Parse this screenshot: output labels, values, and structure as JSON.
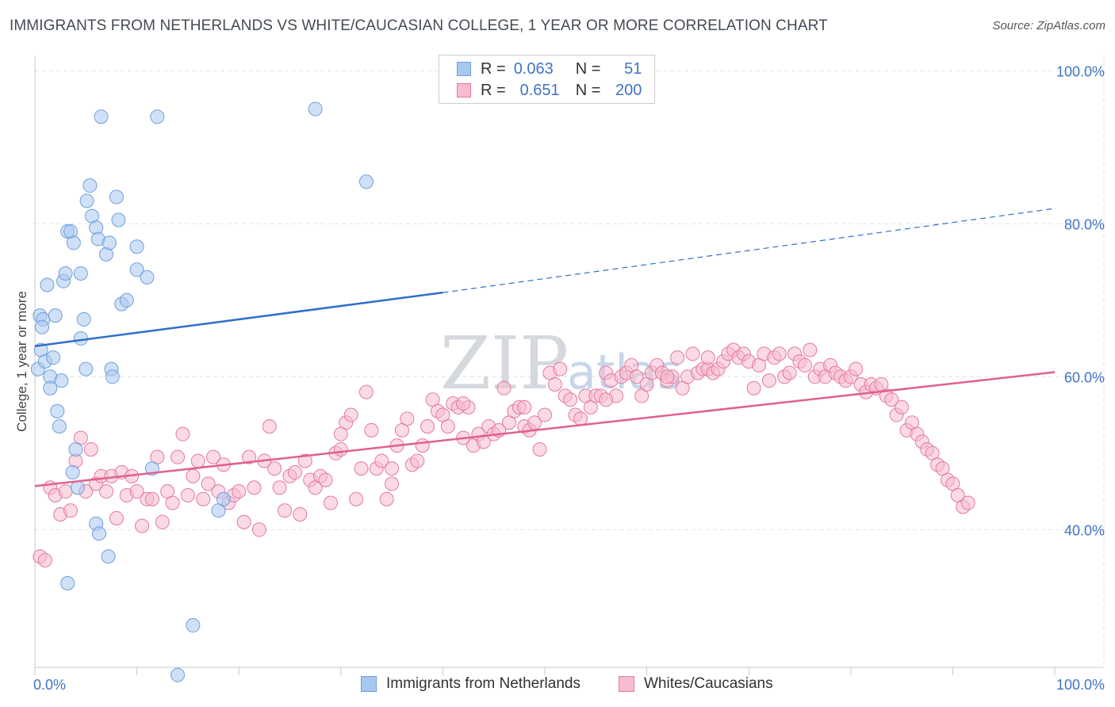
{
  "title": "IMMIGRANTS FROM NETHERLANDS VS WHITE/CAUCASIAN COLLEGE, 1 YEAR OR MORE CORRELATION CHART",
  "source": "Source: ZipAtlas.com",
  "watermark": {
    "zip": "ZIP",
    "atlas": "atlas"
  },
  "legend": {
    "rows": [
      {
        "r_label": "R =",
        "r_value": "0.063",
        "n_label": "N =",
        "n_value": "51",
        "color": "#a9c8f0",
        "border": "#6f9fdc"
      },
      {
        "r_label": "R =",
        "r_value": "0.651",
        "n_label": "N =",
        "n_value": "200",
        "color": "#f8bcd0",
        "border": "#e27aa0"
      }
    ]
  },
  "chart_data": {
    "type": "scatter",
    "title": "IMMIGRANTS FROM NETHERLANDS VS WHITE/CAUCASIAN COLLEGE, 1 YEAR OR MORE CORRELATION CHART",
    "xlabel": "",
    "ylabel": "College, 1 year or more",
    "xlim": [
      0,
      100
    ],
    "ylim": [
      22,
      102
    ],
    "x_ticks": [
      "0.0%",
      "100.0%"
    ],
    "y_ticks": [
      {
        "value": 40,
        "label": "40.0%"
      },
      {
        "value": 60,
        "label": "60.0%"
      },
      {
        "value": 80,
        "label": "80.0%"
      },
      {
        "value": 100,
        "label": "100.0%"
      }
    ],
    "grid": true,
    "legend_position": "top-center",
    "series": [
      {
        "name": "Immigrants from Netherlands",
        "color": "#a9c8f0",
        "stroke": "#6f9fdc",
        "trend": {
          "x": [
            0,
            40,
            100
          ],
          "y": [
            64.0,
            71.0,
            82.0
          ],
          "solid_until": 40,
          "color": "#2f6fc9"
        },
        "points": [
          [
            0.3,
            61
          ],
          [
            0.5,
            68
          ],
          [
            0.8,
            67.5
          ],
          [
            0.7,
            66.5
          ],
          [
            0.6,
            63.5
          ],
          [
            1.0,
            62
          ],
          [
            1.2,
            72
          ],
          [
            1.5,
            60
          ],
          [
            1.8,
            62.5
          ],
          [
            1.5,
            58.5
          ],
          [
            2.0,
            68
          ],
          [
            2.2,
            55.5
          ],
          [
            2.4,
            53.5
          ],
          [
            2.6,
            59.5
          ],
          [
            2.8,
            72.5
          ],
          [
            3.0,
            73.5
          ],
          [
            3.2,
            79
          ],
          [
            3.5,
            79
          ],
          [
            3.8,
            77.5
          ],
          [
            4.0,
            50.5
          ],
          [
            3.7,
            47.5
          ],
          [
            4.2,
            45.5
          ],
          [
            4.5,
            65
          ],
          [
            4.8,
            67.5
          ],
          [
            5.1,
            83
          ],
          [
            5.4,
            85
          ],
          [
            4.5,
            73.5
          ],
          [
            5.6,
            81
          ],
          [
            6.0,
            79.5
          ],
          [
            6.2,
            78
          ],
          [
            6.5,
            94
          ],
          [
            7.0,
            76
          ],
          [
            7.3,
            77.5
          ],
          [
            8.0,
            83.5
          ],
          [
            8.2,
            80.5
          ],
          [
            8.5,
            69.5
          ],
          [
            9.0,
            70
          ],
          [
            7.5,
            61
          ],
          [
            7.6,
            60
          ],
          [
            6.0,
            40.8
          ],
          [
            6.3,
            39.5
          ],
          [
            7.2,
            36.5
          ],
          [
            3.2,
            33
          ],
          [
            10.0,
            74
          ],
          [
            11.0,
            73
          ],
          [
            11.5,
            48
          ],
          [
            10.0,
            77
          ],
          [
            12.0,
            94
          ],
          [
            18.0,
            42.5
          ],
          [
            15.5,
            27.5
          ],
          [
            14.0,
            21
          ],
          [
            27.5,
            95
          ],
          [
            32.5,
            85.5
          ],
          [
            18.5,
            44
          ],
          [
            5.0,
            61
          ]
        ]
      },
      {
        "name": "Whites/Caucasians",
        "color": "#f8bcd0",
        "stroke": "#e27aa0",
        "trend": {
          "x": [
            0,
            100
          ],
          "y": [
            45.7,
            60.6
          ],
          "solid_until": 100,
          "color": "#e0608f"
        },
        "points": [
          [
            0.5,
            36.5
          ],
          [
            1.0,
            36
          ],
          [
            1.5,
            45.5
          ],
          [
            2.0,
            44.5
          ],
          [
            2.5,
            42
          ],
          [
            3.0,
            45
          ],
          [
            3.5,
            42.5
          ],
          [
            4.0,
            49
          ],
          [
            4.5,
            52
          ],
          [
            5.0,
            45
          ],
          [
            5.5,
            50.5
          ],
          [
            6.0,
            46
          ],
          [
            6.5,
            47
          ],
          [
            7.0,
            45
          ],
          [
            7.5,
            47
          ],
          [
            8.0,
            41.5
          ],
          [
            8.5,
            47.5
          ],
          [
            9.0,
            44.5
          ],
          [
            9.5,
            47
          ],
          [
            10.0,
            45
          ],
          [
            10.5,
            40.5
          ],
          [
            11.0,
            44
          ],
          [
            11.5,
            44
          ],
          [
            12.0,
            49.5
          ],
          [
            12.5,
            41
          ],
          [
            13.0,
            45
          ],
          [
            13.5,
            43.5
          ],
          [
            14.0,
            49.5
          ],
          [
            14.5,
            52.5
          ],
          [
            15.0,
            44.5
          ],
          [
            15.5,
            47
          ],
          [
            16.0,
            49
          ],
          [
            16.5,
            44
          ],
          [
            17.0,
            46
          ],
          [
            17.5,
            49.5
          ],
          [
            18.0,
            45
          ],
          [
            18.5,
            48.5
          ],
          [
            19.0,
            43.5
          ],
          [
            19.5,
            44.5
          ],
          [
            20.0,
            45
          ],
          [
            20.5,
            41
          ],
          [
            21.0,
            49.5
          ],
          [
            21.5,
            45.5
          ],
          [
            22.0,
            40
          ],
          [
            22.5,
            49
          ],
          [
            23.0,
            53.5
          ],
          [
            23.5,
            48
          ],
          [
            24.0,
            45.5
          ],
          [
            24.5,
            42.5
          ],
          [
            25.0,
            47
          ],
          [
            25.5,
            47.5
          ],
          [
            26.0,
            42
          ],
          [
            26.5,
            49
          ],
          [
            27.0,
            46.5
          ],
          [
            27.5,
            45.5
          ],
          [
            28.0,
            47
          ],
          [
            28.5,
            46.5
          ],
          [
            29.0,
            43.5
          ],
          [
            29.5,
            50
          ],
          [
            30.0,
            50.5
          ],
          [
            30.5,
            54
          ],
          [
            31.0,
            55
          ],
          [
            31.5,
            44
          ],
          [
            32.0,
            48
          ],
          [
            32.5,
            58
          ],
          [
            33.0,
            53
          ],
          [
            33.5,
            48
          ],
          [
            34.0,
            49
          ],
          [
            34.5,
            44
          ],
          [
            35.0,
            46
          ],
          [
            35.5,
            51
          ],
          [
            36.0,
            53
          ],
          [
            36.5,
            54.5
          ],
          [
            37.0,
            48.5
          ],
          [
            37.5,
            49
          ],
          [
            38.0,
            51
          ],
          [
            38.5,
            53.5
          ],
          [
            39.0,
            57
          ],
          [
            39.5,
            55.5
          ],
          [
            40.0,
            55
          ],
          [
            40.5,
            53.5
          ],
          [
            41.0,
            56.5
          ],
          [
            41.5,
            56
          ],
          [
            42.0,
            52
          ],
          [
            42.5,
            56
          ],
          [
            43.0,
            51
          ],
          [
            43.5,
            52.5
          ],
          [
            44.0,
            51.5
          ],
          [
            44.5,
            53.5
          ],
          [
            45.0,
            52.5
          ],
          [
            45.5,
            53
          ],
          [
            46.0,
            58.5
          ],
          [
            46.5,
            54
          ],
          [
            47.0,
            55.5
          ],
          [
            47.5,
            56
          ],
          [
            48.0,
            53.5
          ],
          [
            48.5,
            53
          ],
          [
            49.0,
            54
          ],
          [
            49.5,
            50.5
          ],
          [
            50.0,
            55
          ],
          [
            50.5,
            60.5
          ],
          [
            51.0,
            59
          ],
          [
            51.5,
            61
          ],
          [
            52.0,
            57.5
          ],
          [
            52.5,
            57
          ],
          [
            53.0,
            55
          ],
          [
            53.5,
            54.5
          ],
          [
            54.0,
            57.5
          ],
          [
            54.5,
            56
          ],
          [
            55.0,
            57.5
          ],
          [
            55.5,
            57.5
          ],
          [
            56.0,
            60.5
          ],
          [
            56.5,
            59.5
          ],
          [
            57.0,
            57.5
          ],
          [
            57.5,
            60
          ],
          [
            58.0,
            60.5
          ],
          [
            58.5,
            61.5
          ],
          [
            59.0,
            60
          ],
          [
            59.5,
            57.5
          ],
          [
            60.0,
            59
          ],
          [
            60.5,
            60.5
          ],
          [
            61.0,
            61.5
          ],
          [
            61.5,
            60.5
          ],
          [
            62.0,
            59.5
          ],
          [
            62.5,
            60
          ],
          [
            63.0,
            62.5
          ],
          [
            63.5,
            58.5
          ],
          [
            64.0,
            60
          ],
          [
            64.5,
            63
          ],
          [
            65.0,
            60.5
          ],
          [
            65.5,
            61
          ],
          [
            66.0,
            61
          ],
          [
            66.5,
            60.5
          ],
          [
            67.0,
            61
          ],
          [
            67.5,
            62
          ],
          [
            68.0,
            63
          ],
          [
            68.5,
            63.5
          ],
          [
            69.0,
            62.5
          ],
          [
            69.5,
            63
          ],
          [
            70.0,
            62
          ],
          [
            70.5,
            58.5
          ],
          [
            71.0,
            61.5
          ],
          [
            71.5,
            63
          ],
          [
            72.0,
            59.5
          ],
          [
            72.5,
            62.5
          ],
          [
            73.0,
            63
          ],
          [
            73.5,
            60
          ],
          [
            74.0,
            60.5
          ],
          [
            74.5,
            63
          ],
          [
            75.0,
            62
          ],
          [
            75.5,
            61.5
          ],
          [
            76.0,
            63.5
          ],
          [
            76.5,
            60
          ],
          [
            77.0,
            61
          ],
          [
            77.5,
            60
          ],
          [
            78.0,
            61.5
          ],
          [
            78.5,
            60.5
          ],
          [
            79.0,
            60
          ],
          [
            79.5,
            59.5
          ],
          [
            80.0,
            60
          ],
          [
            80.5,
            61
          ],
          [
            81.0,
            59
          ],
          [
            81.5,
            58
          ],
          [
            82.0,
            59
          ],
          [
            82.5,
            58.5
          ],
          [
            83.0,
            59
          ],
          [
            83.5,
            57.5
          ],
          [
            84.0,
            57
          ],
          [
            84.5,
            55
          ],
          [
            85.0,
            56
          ],
          [
            85.5,
            53
          ],
          [
            86.0,
            54
          ],
          [
            86.5,
            52.5
          ],
          [
            87.0,
            51.5
          ],
          [
            87.5,
            50.5
          ],
          [
            88.0,
            50
          ],
          [
            88.5,
            48.5
          ],
          [
            89.0,
            48
          ],
          [
            89.5,
            46.5
          ],
          [
            90.0,
            46
          ],
          [
            90.5,
            44.5
          ],
          [
            91.0,
            43
          ],
          [
            91.5,
            43.5
          ],
          [
            30.0,
            52.5
          ],
          [
            35.0,
            48
          ],
          [
            42.0,
            56.5
          ],
          [
            48.0,
            56
          ],
          [
            56.0,
            57
          ],
          [
            62.0,
            60
          ],
          [
            66.0,
            62.5
          ]
        ]
      }
    ]
  },
  "bottom_legend": [
    {
      "label": "Immigrants from Netherlands",
      "color": "#a9c8f0",
      "border": "#6f9fdc"
    },
    {
      "label": "Whites/Caucasians",
      "color": "#f8bcd0",
      "border": "#e27aa0"
    }
  ]
}
